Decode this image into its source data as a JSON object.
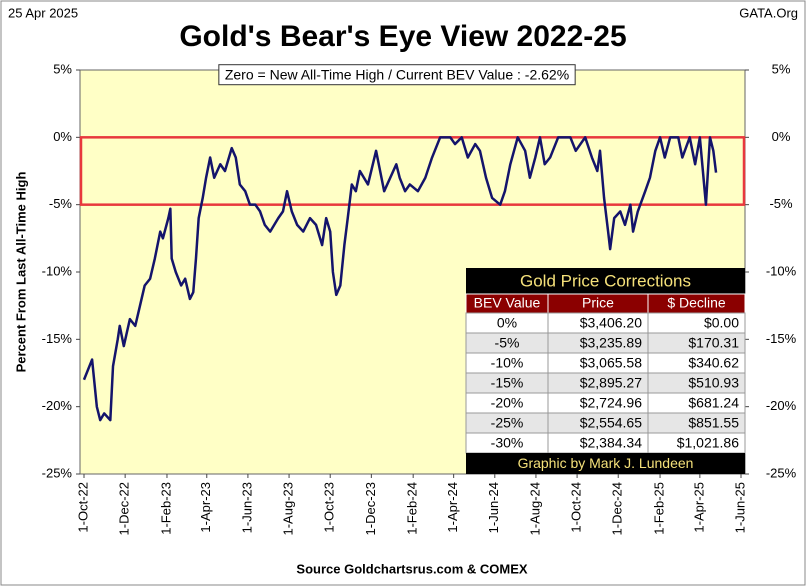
{
  "chart_data": {
    "type": "line",
    "date_label": "25 Apr 2025",
    "source_label": "GATA.Org",
    "title": "Gold's Bear's Eye View 2022-25",
    "subtitle": "Zero = New All-Time High / Current  BEV Value : -2.62%",
    "ylabel": "Percent  From Last  All-Time High",
    "xlabel": "Source Goldchartsrus.com & COMEX",
    "grid": false,
    "highlight": {
      "from": -5,
      "to": 0,
      "color": "#e8383d"
    },
    "xlim": [
      "2022-10-01",
      "2025-06-01"
    ],
    "xticks": [
      {
        "value": "2022-10-01",
        "label": "1-Oct-22"
      },
      {
        "value": "2022-12-01",
        "label": "1-Dec-22"
      },
      {
        "value": "2023-02-01",
        "label": "1-Feb-23"
      },
      {
        "value": "2023-04-01",
        "label": "1-Apr-23"
      },
      {
        "value": "2023-06-01",
        "label": "1-Jun-23"
      },
      {
        "value": "2023-08-01",
        "label": "1-Aug-23"
      },
      {
        "value": "2023-10-01",
        "label": "1-Oct-23"
      },
      {
        "value": "2023-12-01",
        "label": "1-Dec-23"
      },
      {
        "value": "2024-02-01",
        "label": "1-Feb-24"
      },
      {
        "value": "2024-04-01",
        "label": "1-Apr-24"
      },
      {
        "value": "2024-06-01",
        "label": "1-Jun-24"
      },
      {
        "value": "2024-08-01",
        "label": "1-Aug-24"
      },
      {
        "value": "2024-10-01",
        "label": "1-Oct-24"
      },
      {
        "value": "2024-12-01",
        "label": "1-Dec-24"
      },
      {
        "value": "2025-02-01",
        "label": "1-Feb-25"
      },
      {
        "value": "2025-04-01",
        "label": "1-Apr-25"
      },
      {
        "value": "2025-06-01",
        "label": "1-Jun-25"
      }
    ],
    "ylim": [
      -25,
      5
    ],
    "yticks": [
      {
        "value": 5,
        "label": "5%"
      },
      {
        "value": 0,
        "label": "0%"
      },
      {
        "value": -5,
        "label": "-5%"
      },
      {
        "value": -10,
        "label": "-10%"
      },
      {
        "value": -15,
        "label": "-15%"
      },
      {
        "value": -20,
        "label": "-20%"
      },
      {
        "value": -25,
        "label": "-25%"
      }
    ],
    "y2lim": [
      -25,
      5
    ],
    "y2ticks": [
      {
        "value": 5,
        "label": "5%"
      },
      {
        "value": 0,
        "label": "0%"
      },
      {
        "value": -5,
        "label": "-5%"
      },
      {
        "value": -10,
        "label": "-10%"
      },
      {
        "value": -15,
        "label": "-15%"
      },
      {
        "value": -20,
        "label": "-20%"
      },
      {
        "value": -25,
        "label": "-25%"
      }
    ],
    "x": [
      "2022-10-01",
      "2022-10-13",
      "2022-10-20",
      "2022-10-25",
      "2022-10-31",
      "2022-11-09",
      "2022-11-13",
      "2022-11-20",
      "2022-11-23",
      "2022-11-29",
      "2022-12-08",
      "2022-12-16",
      "2022-12-23",
      "2022-12-30",
      "2023-01-07",
      "2023-01-14",
      "2023-01-22",
      "2023-01-26",
      "2023-02-03",
      "2023-02-06",
      "2023-02-08",
      "2023-02-14",
      "2023-02-22",
      "2023-02-28",
      "2023-03-07",
      "2023-03-12",
      "2023-03-16",
      "2023-03-20",
      "2023-03-26",
      "2023-03-31",
      "2023-04-06",
      "2023-04-12",
      "2023-04-21",
      "2023-04-28",
      "2023-05-08",
      "2023-05-14",
      "2023-05-20",
      "2023-05-28",
      "2023-06-04",
      "2023-06-12",
      "2023-06-19",
      "2023-06-26",
      "2023-07-04",
      "2023-07-16",
      "2023-07-23",
      "2023-07-29",
      "2023-08-05",
      "2023-08-13",
      "2023-08-22",
      "2023-09-01",
      "2023-09-10",
      "2023-09-19",
      "2023-09-25",
      "2023-10-01",
      "2023-10-05",
      "2023-10-10",
      "2023-10-16",
      "2023-10-22",
      "2023-10-27",
      "2023-11-02",
      "2023-11-08",
      "2023-11-14",
      "2023-11-20",
      "2023-11-26",
      "2023-12-08",
      "2023-12-14",
      "2023-12-20",
      "2023-12-29",
      "2024-01-07",
      "2024-01-12",
      "2024-01-20",
      "2024-01-27",
      "2024-02-08",
      "2024-02-19",
      "2024-02-29",
      "2024-03-12",
      "2024-03-27",
      "2024-04-03",
      "2024-04-13",
      "2024-04-22",
      "2024-05-03",
      "2024-05-10",
      "2024-05-19",
      "2024-05-28",
      "2024-06-09",
      "2024-06-16",
      "2024-06-24",
      "2024-07-05",
      "2024-07-16",
      "2024-07-23",
      "2024-07-31",
      "2024-08-07",
      "2024-08-14",
      "2024-08-22",
      "2024-09-03",
      "2024-09-21",
      "2024-09-29",
      "2024-10-13",
      "2024-10-23",
      "2024-10-31",
      "2024-11-04",
      "2024-11-10",
      "2024-11-16",
      "2024-11-19",
      "2024-11-25",
      "2024-12-04",
      "2024-12-11",
      "2024-12-19",
      "2024-12-23",
      "2024-12-30",
      "2025-01-10",
      "2025-01-17",
      "2025-01-25",
      "2025-02-01",
      "2025-02-08",
      "2025-02-16",
      "2025-02-28",
      "2025-03-06",
      "2025-03-17",
      "2025-03-25",
      "2025-04-01",
      "2025-04-10",
      "2025-04-16",
      "2025-04-21",
      "2025-04-25"
    ],
    "series": [
      {
        "name": "BEV",
        "color": "#14146b",
        "values": [
          -18,
          -16.5,
          -20,
          -21,
          -20.5,
          -21,
          -17,
          -15,
          -14,
          -15.5,
          -13.5,
          -14,
          -12.5,
          -11,
          -10.5,
          -9,
          -7,
          -7.5,
          -6,
          -5.3,
          -9,
          -10,
          -11,
          -10.5,
          -12,
          -11.5,
          -9,
          -6,
          -4.5,
          -3,
          -1.5,
          -3,
          -2,
          -2.5,
          -0.8,
          -1.5,
          -3.5,
          -4,
          -5,
          -5,
          -5.5,
          -6.5,
          -7,
          -6,
          -5.5,
          -4,
          -5.5,
          -6.5,
          -7,
          -6,
          -6.5,
          -8,
          -6,
          -7,
          -10,
          -11.7,
          -11,
          -8,
          -6,
          -3.5,
          -4,
          -2.5,
          -3,
          -3.5,
          -1,
          -2.5,
          -4,
          -3,
          -2,
          -3,
          -4,
          -3.5,
          -4,
          -3,
          -1.5,
          0,
          0,
          -0.5,
          0,
          -1.5,
          -0.5,
          -1,
          -3,
          -4.5,
          -5,
          -4,
          -2,
          0,
          -1,
          -3,
          -1.5,
          0,
          -2,
          -1.5,
          0,
          0,
          -1,
          0,
          -1.5,
          -2.5,
          -1,
          -4.5,
          -7,
          -8.3,
          -6,
          -5.5,
          -6.5,
          -5,
          -7,
          -5.5,
          -4,
          -3,
          -1,
          0,
          -1.5,
          0,
          0,
          -1.5,
          0,
          -2,
          0,
          -5,
          0,
          -1,
          -2.62
        ]
      }
    ],
    "table": {
      "title": "Gold Price Corrections",
      "columns": [
        "BEV Value",
        "Price",
        "$ Decline"
      ],
      "rows": [
        [
          "0%",
          "$3,406.20",
          "$0.00"
        ],
        [
          "-5%",
          "$3,235.89",
          "$170.31"
        ],
        [
          "-10%",
          "$3,065.58",
          "$340.62"
        ],
        [
          "-15%",
          "$2,895.27",
          "$510.93"
        ],
        [
          "-20%",
          "$2,724.96",
          "$681.24"
        ],
        [
          "-25%",
          "$2,554.65",
          "$851.55"
        ],
        [
          "-30%",
          "$2,384.34",
          "$1,021.86"
        ]
      ],
      "footer": "Graphic by Mark J. Lundeen"
    }
  }
}
